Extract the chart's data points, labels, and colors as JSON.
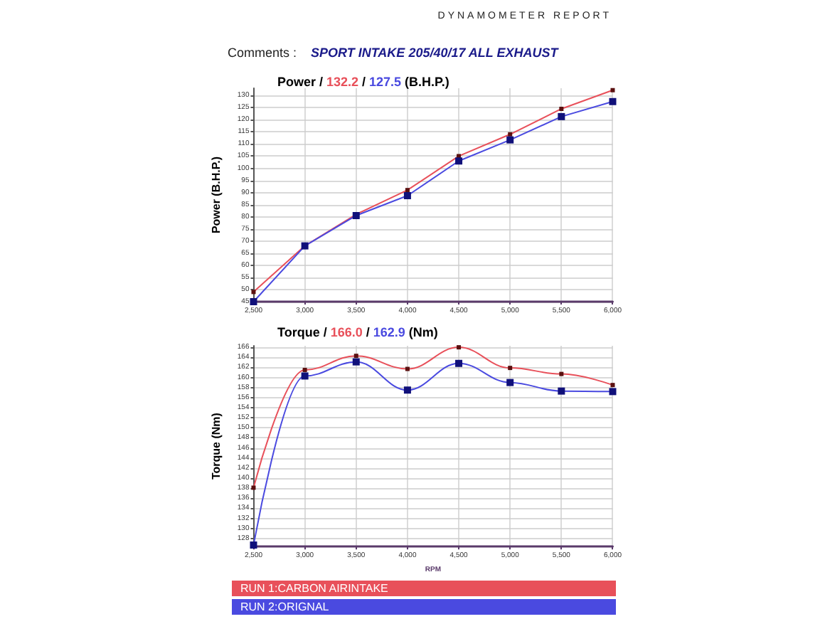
{
  "chart_data": [
    {
      "type": "line",
      "title": "Power / 132.2 / 127.5 (B.H.P.)",
      "ylabel": "Power (B.H.P.)",
      "annotations": [
        "DYNAMOMETER REPORT",
        "Comments :",
        "SPORT INTAKE 205/40/17 ALL EXHAUST"
      ],
      "x": [
        2500,
        3000,
        3500,
        4000,
        4500,
        5000,
        5500,
        6000
      ],
      "series": [
        {
          "color": "#e8505a",
          "values": [
            49,
            68,
            81,
            91,
            105,
            114,
            124.5,
            132.2
          ]
        },
        {
          "color": "#4a4ae0",
          "values": [
            45,
            68,
            80.5,
            88.7,
            103,
            111.7,
            121.3,
            127.5
          ]
        }
      ],
      "xlim": [
        2500,
        6000
      ],
      "xticks": [
        {
          "value": 2500,
          "label": "2,500"
        },
        {
          "value": 3000,
          "label": "3,000"
        },
        {
          "value": 3500,
          "label": "3,500"
        },
        {
          "value": 4000,
          "label": "4,000"
        },
        {
          "value": 4500,
          "label": "4,500"
        },
        {
          "value": 5000,
          "label": "5,000"
        },
        {
          "value": 5500,
          "label": "5,500"
        },
        {
          "value": 6000,
          "label": "6,000"
        }
      ],
      "ylim": [
        45,
        133
      ],
      "yticks": [
        45,
        50,
        55,
        60,
        65,
        70,
        75,
        80,
        85,
        90,
        95,
        100,
        105,
        110,
        115,
        120,
        125,
        130
      ],
      "grid": true,
      "marker": "square",
      "legend": false
    },
    {
      "type": "line",
      "title": "Torque / 166.0 / 162.9 (Nm)",
      "ylabel": "Torque (Nm)",
      "xlabel": "RPM",
      "x": [
        2500,
        3000,
        3500,
        4000,
        4500,
        5000,
        5500,
        6000
      ],
      "series": [
        {
          "name": "RUN 1:CARBON AIRINTAKE",
          "color": "#e8505a",
          "values": [
            138.1,
            161.5,
            164.3,
            161.7,
            166.0,
            161.9,
            160.7,
            158.5
          ]
        },
        {
          "name": "RUN 2:ORIGNAL",
          "color": "#4a4ae0",
          "values": [
            126.7,
            160.3,
            163.1,
            157.5,
            162.8,
            159.0,
            157.3,
            157.2
          ]
        }
      ],
      "xlim": [
        2500,
        6000
      ],
      "xticks": [
        {
          "value": 2500,
          "label": "2,500"
        },
        {
          "value": 3000,
          "label": "3,000"
        },
        {
          "value": 3500,
          "label": "3,500"
        },
        {
          "value": 4000,
          "label": "4,000"
        },
        {
          "value": 4500,
          "label": "4,500"
        },
        {
          "value": 5000,
          "label": "5,000"
        },
        {
          "value": 5500,
          "label": "5,500"
        },
        {
          "value": 6000,
          "label": "6,000"
        }
      ],
      "ylim": [
        126.4,
        166.3
      ],
      "yticks": [
        128,
        130,
        132,
        134,
        136,
        138,
        140,
        142,
        144,
        146,
        148,
        150,
        152,
        154,
        156,
        158,
        160,
        162,
        164,
        166
      ],
      "grid": true,
      "marker": "square",
      "legend": "bottom"
    }
  ]
}
